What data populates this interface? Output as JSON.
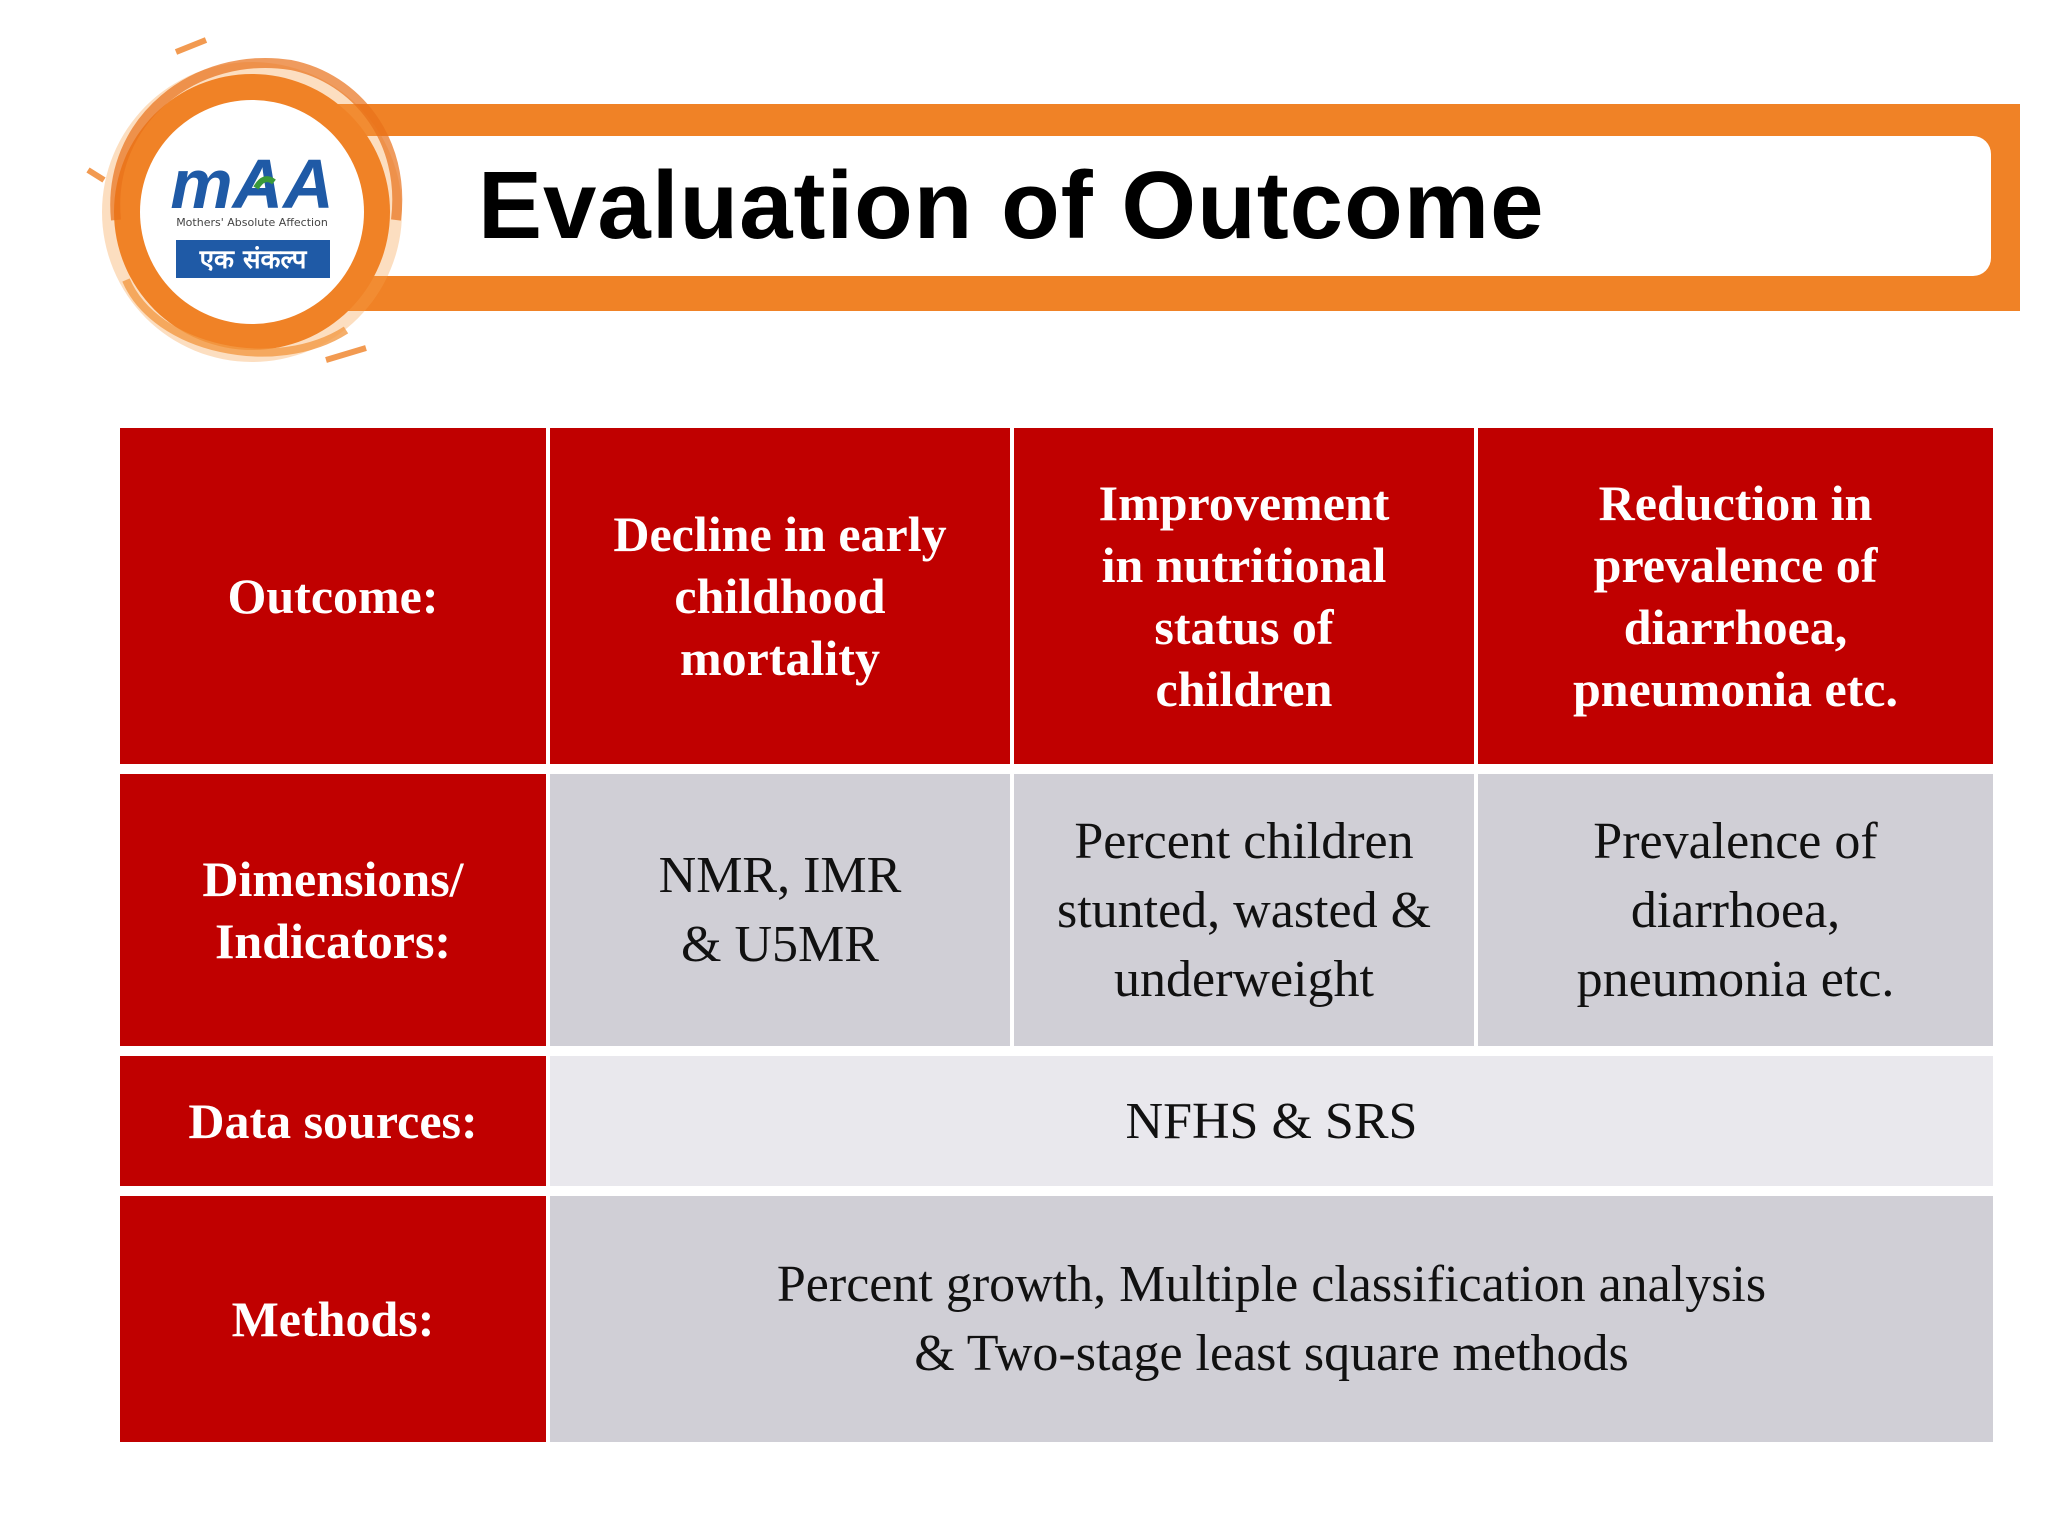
{
  "slide": {
    "title": "Evaluation of Outcome"
  },
  "logo": {
    "main_text": "mAA",
    "subtitle": "Mothers' Absolute Affection",
    "hindi_text": "एक संकल्प",
    "colors": {
      "orange": "#f08226",
      "blue": "#1f5aa6",
      "green": "#3a9a3a"
    }
  },
  "table": {
    "rows": [
      {
        "header": "Outcome:",
        "cells": [
          "Decline in early\nchildhood\nmortality",
          "Improvement\nin nutritional\nstatus of\nchildren",
          "Reduction in\nprevalence of\ndiarrhoea,\npneumonia etc."
        ]
      },
      {
        "header": "Dimensions/\nIndicators:",
        "cells": [
          "NMR, IMR\n& U5MR",
          "Percent children\nstunted, wasted &\nunderweight",
          "Prevalence of\ndiarrhoea,\npneumonia etc."
        ]
      },
      {
        "header": "Data sources:",
        "merged": "NFHS & SRS"
      },
      {
        "header": "Methods:",
        "merged": "Percent growth, Multiple classification analysis\n& Two-stage least square methods"
      }
    ]
  },
  "colors": {
    "header_red": "#c00000",
    "body_grey": "#d0cfd6",
    "body_light": "#e9e8ed",
    "banner_orange": "#f08226"
  }
}
